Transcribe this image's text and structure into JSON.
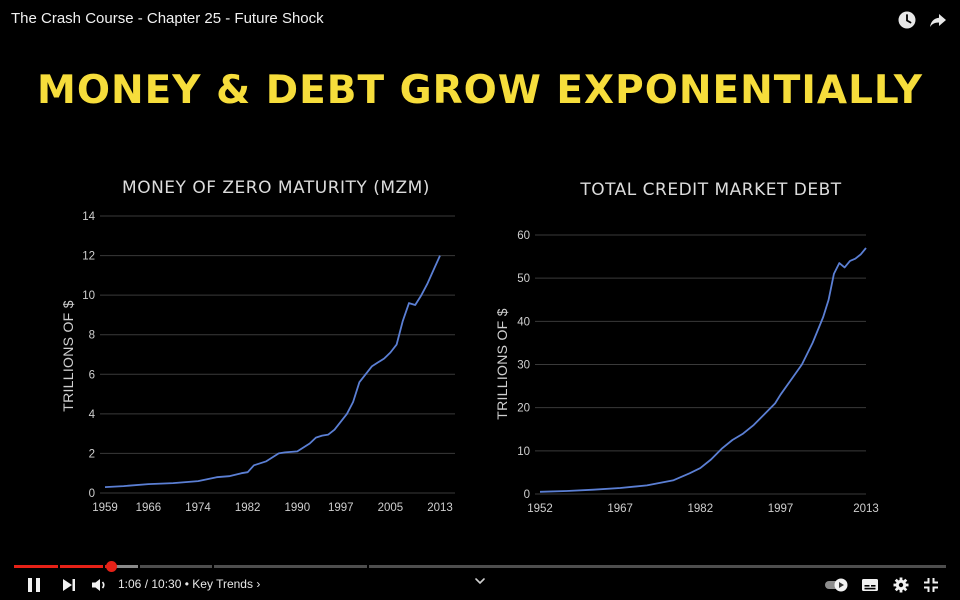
{
  "video": {
    "title": "The Crash Course - Chapter 25 - Future Shock",
    "icons": [
      "clock-icon",
      "share-icon"
    ]
  },
  "slide": {
    "headline": "MONEY & DEBT GROW EXPONENTIALLY"
  },
  "chart_data": [
    {
      "type": "line",
      "title": "MONEY OF ZERO MATURITY (MZM)",
      "xlabel": "",
      "ylabel": "TRILLIONS OF $",
      "x_ticks": [
        "1959",
        "1966",
        "1974",
        "1982",
        "1990",
        "1997",
        "2005",
        "2013"
      ],
      "y_ticks": [
        "0",
        "2",
        "4",
        "6",
        "8",
        "10",
        "12",
        "14"
      ],
      "xlim": [
        1959,
        2013
      ],
      "ylim": [
        0,
        14
      ],
      "grid": true,
      "series": [
        {
          "color": "#5b7fd4",
          "x": [
            1959,
            1962,
            1966,
            1970,
            1974,
            1977,
            1979,
            1981,
            1982,
            1983,
            1985,
            1987,
            1988,
            1990,
            1992,
            1993,
            1994,
            1995,
            1996,
            1997,
            1998,
            1999,
            2000,
            2001,
            2002,
            2003,
            2004,
            2005,
            2006,
            2007,
            2008,
            2009,
            2010,
            2011,
            2012,
            2013
          ],
          "y": [
            0.3,
            0.35,
            0.45,
            0.5,
            0.6,
            0.8,
            0.85,
            1.0,
            1.05,
            1.4,
            1.6,
            2.0,
            2.05,
            2.1,
            2.5,
            2.8,
            2.9,
            2.95,
            3.2,
            3.6,
            4.0,
            4.6,
            5.6,
            6.0,
            6.4,
            6.6,
            6.8,
            7.1,
            7.5,
            8.7,
            9.6,
            9.5,
            10.0,
            10.6,
            11.3,
            12.0
          ]
        }
      ]
    },
    {
      "type": "line",
      "title": "TOTAL CREDIT MARKET DEBT",
      "xlabel": "",
      "ylabel": "TRILLIONS OF $",
      "x_ticks": [
        "1952",
        "1967",
        "1982",
        "1997",
        "2013"
      ],
      "y_ticks": [
        "0",
        "10",
        "20",
        "30",
        "40",
        "50",
        "60"
      ],
      "xlim": [
        1952,
        2013
      ],
      "ylim": [
        0,
        60
      ],
      "grid": true,
      "series": [
        {
          "color": "#5b7fd4",
          "x": [
            1952,
            1957,
            1962,
            1967,
            1972,
            1977,
            1980,
            1982,
            1984,
            1986,
            1988,
            1990,
            1992,
            1994,
            1996,
            1997,
            1999,
            2001,
            2003,
            2005,
            2006,
            2007,
            2008,
            2009,
            2010,
            2011,
            2012,
            2013
          ],
          "y": [
            0.5,
            0.7,
            1.0,
            1.4,
            2.0,
            3.2,
            4.8,
            6.0,
            8.0,
            10.5,
            12.5,
            14.0,
            16.0,
            18.5,
            21.0,
            23.0,
            26.5,
            30.0,
            35.0,
            41.0,
            45.0,
            51.0,
            53.5,
            52.5,
            54.0,
            54.5,
            55.5,
            57.0
          ]
        }
      ]
    }
  ],
  "player": {
    "current_time": "1:06",
    "duration": "10:30",
    "time_separator": " / ",
    "chapter_sep": " • ",
    "chapter_label": "Key Trends ›",
    "played_fraction": 0.105,
    "buffered_fraction": 0.133,
    "chapter_marks": [
      0.047,
      0.095,
      0.133,
      0.212,
      0.379
    ],
    "icons": [
      "pause-icon",
      "next-icon",
      "volume-icon",
      "chevron-up-icon",
      "autoplay-toggle-icon",
      "captions-icon",
      "settings-icon",
      "exit-fullscreen-icon"
    ]
  }
}
